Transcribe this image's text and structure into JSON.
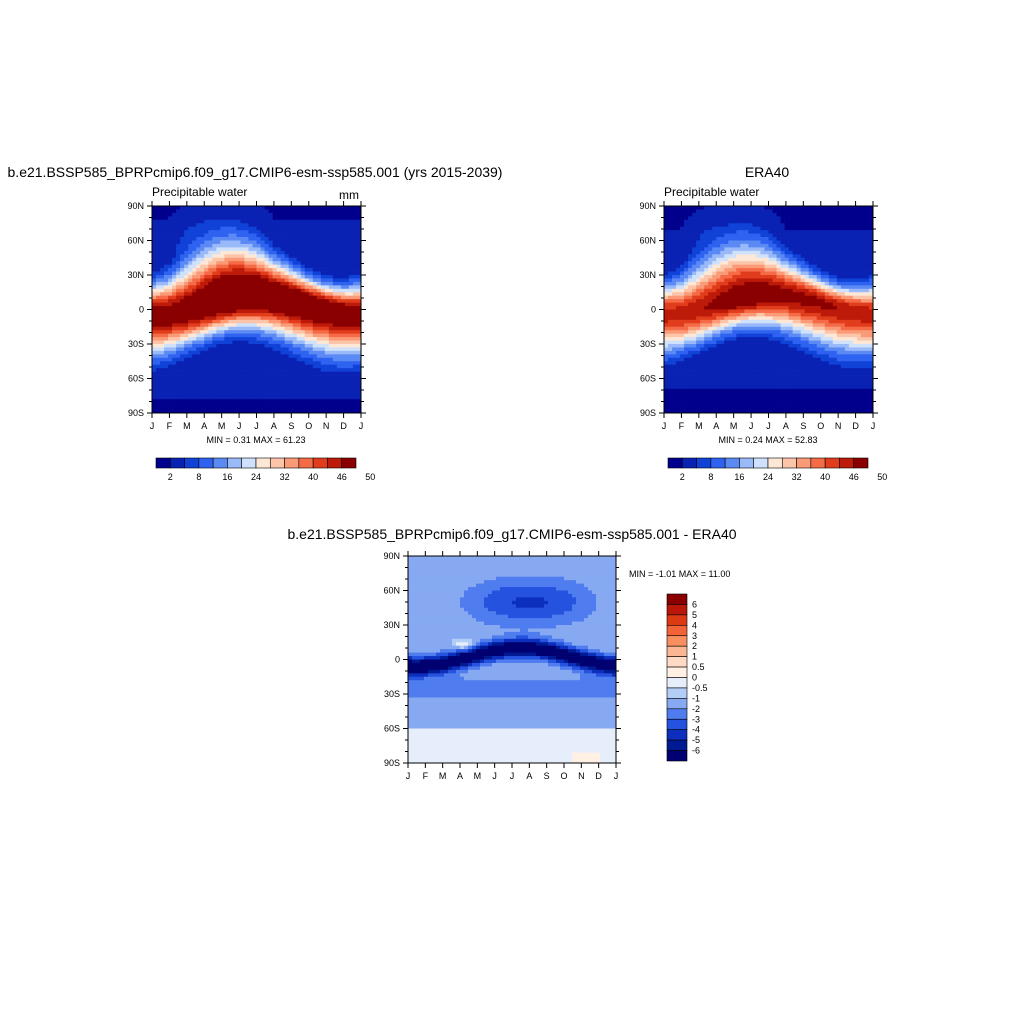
{
  "chart_data": [
    {
      "type": "heatmap",
      "title": "b.e21.BSSP585_BPRPcmip6.f09_g17.CMIP6-esm-ssp585.001 (yrs 2015-2039)",
      "subtitle": "Precipitable water",
      "units": "mm",
      "x_ticks": [
        "J",
        "F",
        "M",
        "A",
        "M",
        "J",
        "J",
        "A",
        "S",
        "O",
        "N",
        "D",
        "J"
      ],
      "y_ticks": [
        "90N",
        "60N",
        "30N",
        "0",
        "30S",
        "60S",
        "90S"
      ],
      "stats": "MIN =   0.31 MAX =  61.23",
      "min": 0.31,
      "max": 61.23,
      "colorbar_labels": [
        "2",
        "8",
        "16",
        "24",
        "32",
        "40",
        "46",
        "50"
      ],
      "colors": [
        "#00008d",
        "#0a22b4",
        "#1042d8",
        "#2f62f0",
        "#5c8af5",
        "#9ab9f9",
        "#cfe1fb",
        "#fde8d7",
        "#fcc5aa",
        "#fb9a77",
        "#f56b48",
        "#e13d1c",
        "#bd1a0a",
        "#8a0000"
      ],
      "model": "a"
    },
    {
      "type": "heatmap",
      "title": "ERA40",
      "subtitle": "Precipitable water",
      "x_ticks": [
        "J",
        "F",
        "M",
        "A",
        "M",
        "J",
        "J",
        "A",
        "S",
        "O",
        "N",
        "D",
        "J"
      ],
      "y_ticks": [
        "90N",
        "60N",
        "30N",
        "0",
        "30S",
        "60S",
        "90S"
      ],
      "stats": "MIN =   0.24 MAX =  52.83",
      "min": 0.24,
      "max": 52.83,
      "colorbar_labels": [
        "2",
        "8",
        "16",
        "24",
        "32",
        "40",
        "46",
        "50"
      ],
      "colors": [
        "#00008d",
        "#0a22b4",
        "#1042d8",
        "#2f62f0",
        "#5c8af5",
        "#9ab9f9",
        "#cfe1fb",
        "#fde8d7",
        "#fcc5aa",
        "#fb9a77",
        "#f56b48",
        "#e13d1c",
        "#bd1a0a",
        "#8a0000"
      ],
      "model": "b"
    },
    {
      "type": "heatmap",
      "title": "b.e21.BSSP585_BPRPcmip6.f09_g17.CMIP6-esm-ssp585.001 - ERA40",
      "x_ticks": [
        "J",
        "F",
        "M",
        "A",
        "M",
        "J",
        "J",
        "A",
        "S",
        "O",
        "N",
        "D",
        "J"
      ],
      "y_ticks": [
        "90N",
        "60N",
        "30N",
        "0",
        "30S",
        "60S",
        "90S"
      ],
      "stats": "MIN =  -1.01 MAX =  11.00",
      "min": -1.01,
      "max": 11.0,
      "colorbar_labels": [
        "6",
        "5",
        "4",
        "3",
        "2",
        "1",
        "0.5",
        "0",
        "-0.5",
        "-1",
        "-2",
        "-3",
        "-4",
        "-5",
        "-6"
      ],
      "colors": [
        "#8a0000",
        "#b91808",
        "#dc3a12",
        "#f26435",
        "#f88f60",
        "#fbb693",
        "#fed9c4",
        "#fff0e3",
        "#e6eefb",
        "#b4cdf7",
        "#86a9f2",
        "#4f7cee",
        "#2552de",
        "#0c2fbd",
        "#001a93",
        "#000070"
      ],
      "model": "diff"
    }
  ]
}
